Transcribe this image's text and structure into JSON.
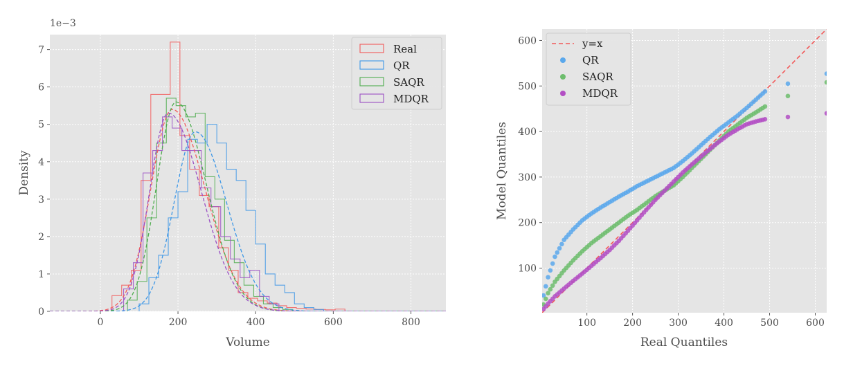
{
  "chart_data": [
    {
      "type": "histogram",
      "xlabel": "Volume",
      "ylabel": "Density",
      "offset_label": "1e−3",
      "xlim": [
        -130,
        890
      ],
      "ylim": [
        0,
        0.0074
      ],
      "xticks": [
        0,
        200,
        400,
        600,
        800
      ],
      "yticks": [
        0,
        0.001,
        0.002,
        0.003,
        0.004,
        0.005,
        0.006,
        0.007
      ],
      "ytick_labels": [
        "0",
        "1",
        "2",
        "3",
        "4",
        "5",
        "6",
        "7"
      ],
      "grid": true,
      "legend_position": "top-right",
      "series": [
        {
          "name": "Real",
          "color": "#f25a5a",
          "edges": [
            30,
            55,
            80,
            105,
            130,
            155,
            180,
            205,
            230,
            255,
            280,
            305,
            330,
            355,
            380,
            405,
            430,
            455,
            480,
            505,
            530,
            555,
            580,
            605,
            630
          ],
          "values": [
            0.00042,
            0.0007,
            0.0011,
            0.0035,
            0.0058,
            0.0058,
            0.0072,
            0.0047,
            0.0038,
            0.0031,
            0.0028,
            0.0017,
            0.0011,
            0.0005,
            0.00035,
            0.00028,
            0.00022,
            0.00015,
            0.0001,
            8e-05,
            6e-05,
            5e-05,
            4e-05,
            6e-05
          ],
          "kde": {
            "peak": 185,
            "sigma_left": 55,
            "sigma_right": 85,
            "height": 0.0054
          }
        },
        {
          "name": "QR",
          "color": "#3d97e6",
          "edges": [
            100,
            125,
            150,
            175,
            200,
            225,
            250,
            275,
            300,
            325,
            350,
            375,
            400,
            425,
            450,
            475,
            500,
            525,
            550,
            575
          ],
          "values": [
            0.0002,
            0.0009,
            0.0015,
            0.0025,
            0.0032,
            0.0046,
            0.0045,
            0.005,
            0.0045,
            0.0038,
            0.0035,
            0.0027,
            0.0018,
            0.001,
            0.0007,
            0.0005,
            0.0002,
            0.0001,
            5e-05
          ],
          "kde": {
            "peak": 245,
            "sigma_left": 55,
            "sigma_right": 80,
            "height": 0.0048
          }
        },
        {
          "name": "SAQR",
          "color": "#4fad4f",
          "edges": [
            70,
            95,
            120,
            145,
            170,
            195,
            220,
            245,
            270,
            295,
            320,
            345,
            370,
            395,
            420,
            445,
            470,
            495
          ],
          "values": [
            0.0003,
            0.0008,
            0.0025,
            0.0045,
            0.0057,
            0.0055,
            0.0052,
            0.0053,
            0.0036,
            0.003,
            0.0019,
            0.0013,
            0.0007,
            0.0004,
            0.0002,
            0.0001,
            5e-05
          ],
          "kde": {
            "peak": 195,
            "sigma_left": 50,
            "sigma_right": 78,
            "height": 0.0056
          }
        },
        {
          "name": "MDQR",
          "color": "#9a4fc4",
          "edges": [
            60,
            85,
            110,
            135,
            160,
            185,
            210,
            235,
            260,
            285,
            310,
            335,
            360,
            385,
            410,
            435,
            460
          ],
          "values": [
            0.0006,
            0.0013,
            0.0037,
            0.0043,
            0.0052,
            0.0049,
            0.0043,
            0.0043,
            0.0033,
            0.0028,
            0.002,
            0.0014,
            0.0009,
            0.0011,
            0.0004,
            0.0002
          ],
          "kde": {
            "peak": 175,
            "sigma_left": 48,
            "sigma_right": 85,
            "height": 0.0053
          }
        }
      ]
    },
    {
      "type": "scatter",
      "xlabel": "Real Quantiles",
      "ylabel": "Model Quantiles",
      "xlim": [
        2,
        625
      ],
      "ylim": [
        2,
        625
      ],
      "xticks": [
        100,
        200,
        300,
        400,
        500,
        600
      ],
      "yticks": [
        100,
        200,
        300,
        400,
        500,
        600
      ],
      "grid": true,
      "legend_position": "top-left",
      "reference_line": {
        "name": "y=x",
        "color": "#f25a5a",
        "style": "dashed"
      },
      "series": [
        {
          "name": "QR",
          "color": "#5aa8ec",
          "x": [
            5,
            15,
            30,
            50,
            70,
            90,
            110,
            130,
            150,
            170,
            190,
            210,
            230,
            250,
            270,
            290,
            310,
            330,
            350,
            370,
            390,
            410,
            430,
            450,
            470,
            490,
            540,
            625
          ],
          "y": [
            40,
            80,
            125,
            162,
            185,
            205,
            220,
            233,
            245,
            257,
            268,
            280,
            290,
            300,
            310,
            320,
            335,
            352,
            370,
            388,
            405,
            420,
            435,
            452,
            470,
            488,
            505,
            527
          ]
        },
        {
          "name": "SAQR",
          "color": "#6dbd6d",
          "x": [
            5,
            15,
            30,
            50,
            70,
            90,
            110,
            130,
            150,
            170,
            190,
            210,
            230,
            250,
            270,
            290,
            310,
            330,
            350,
            370,
            390,
            410,
            430,
            450,
            470,
            490,
            540,
            625
          ],
          "y": [
            20,
            45,
            70,
            95,
            117,
            137,
            155,
            170,
            185,
            200,
            215,
            228,
            243,
            258,
            270,
            282,
            300,
            320,
            340,
            360,
            380,
            400,
            415,
            430,
            442,
            455,
            478,
            508
          ]
        },
        {
          "name": "MDQR",
          "color": "#b34fc4",
          "x": [
            5,
            15,
            30,
            50,
            70,
            90,
            110,
            130,
            150,
            170,
            190,
            210,
            230,
            250,
            270,
            290,
            310,
            330,
            350,
            370,
            390,
            410,
            430,
            450,
            470,
            490,
            540,
            625
          ],
          "y": [
            10,
            22,
            38,
            55,
            72,
            88,
            105,
            122,
            140,
            160,
            182,
            205,
            228,
            250,
            270,
            290,
            310,
            328,
            345,
            362,
            378,
            393,
            405,
            416,
            422,
            427,
            432,
            440
          ]
        }
      ]
    }
  ]
}
